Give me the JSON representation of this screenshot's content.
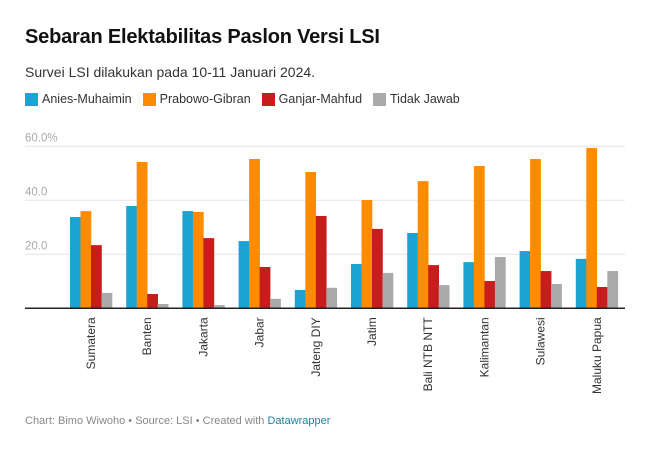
{
  "header": {
    "title": "Sebaran Elektabilitas Paslon Versi LSI",
    "subtitle": "Survei LSI dilakukan pada 10-11 Januari 2024."
  },
  "footer": {
    "prefix": "Chart: Bimo Wiwoho • Source: LSI • Created with ",
    "link_label": "Datawrapper"
  },
  "chart_data": {
    "type": "bar",
    "title": "Sebaran Elektabilitas Paslon Versi LSI",
    "subtitle": "Survei LSI dilakukan pada 10-11 Januari 2024.",
    "xlabel": "",
    "ylabel": "",
    "ylim": [
      0,
      60
    ],
    "yticks": [
      0,
      20,
      40,
      60
    ],
    "ytick_labels": [
      "",
      "20.0",
      "40.0",
      "60.0%"
    ],
    "grid": true,
    "legend_position": "top-left",
    "categories": [
      "Sumatera",
      "Banten",
      "Jakarta",
      "Jabar",
      "Jateng DIY",
      "Jatim",
      "Bali NTB NTT",
      "Kalimantan",
      "Sulawesi",
      "Maluku Papua"
    ],
    "series": [
      {
        "name": "Anies-Muhaimin",
        "color": "#1ba4d1",
        "values": [
          33.8,
          37.9,
          36.0,
          24.9,
          6.8,
          16.4,
          27.9,
          17.1,
          21.2,
          18.3
        ]
      },
      {
        "name": "Prabowo-Gibran",
        "color": "#ff8c00",
        "values": [
          36.0,
          54.2,
          35.7,
          55.3,
          50.5,
          40.1,
          47.1,
          52.7,
          55.3,
          59.4
        ]
      },
      {
        "name": "Ganjar-Mahfud",
        "color": "#c71e1d",
        "values": [
          23.4,
          5.3,
          26.0,
          15.3,
          34.2,
          29.4,
          16.0,
          10.1,
          13.8,
          7.9
        ]
      },
      {
        "name": "Tidak Jawab",
        "color": "#aaaaaa",
        "values": [
          5.7,
          1.6,
          1.2,
          3.5,
          7.6,
          13.1,
          8.6,
          19.0,
          9.0,
          13.8
        ]
      }
    ]
  }
}
